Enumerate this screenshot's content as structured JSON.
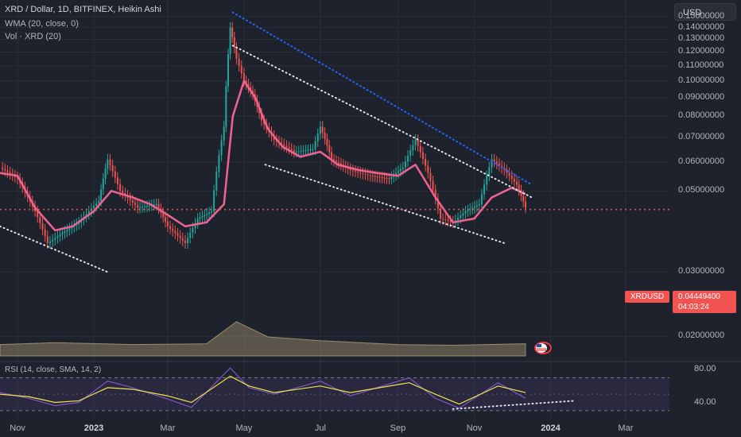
{
  "legend": {
    "title": "XRD / Dollar, 1D, BITFINEX, Heikin Ashi",
    "wma": "WMA (20, close, 0)",
    "vol": "Vol · XRD (20)",
    "rsi": "RSI (14, close, SMA, 14, 2)"
  },
  "currency_button": "USD",
  "last_price": {
    "symbol": "XRDUSD",
    "value": "0.04449400",
    "countdown": "04:03:24"
  },
  "colors": {
    "background": "#1e222d",
    "grid": "#2a2e39",
    "wma": "#f06292",
    "bull": "#26a69a",
    "bear": "#ef5350",
    "price_line": "#f05350",
    "trend_blue": "#2962ff",
    "trend_white": "#e0e3eb",
    "volume_ma": "#d7c189",
    "rsi_line": "#7e57c2",
    "rsi_ma": "#f0e54a"
  },
  "chart_data": [
    {
      "type": "line",
      "name": "price",
      "price_scale": "log",
      "ylim": [
        0.0175,
        0.16
      ],
      "y_ticks": [
        "0.15000000",
        "0.14000000",
        "0.13000000",
        "0.12000000",
        "0.11000000",
        "0.10000000",
        "0.09000000",
        "0.08000000",
        "0.07000000",
        "0.06000000",
        "0.05000000",
        "0.03000000",
        "0.02000000"
      ],
      "y_tick_values": [
        0.15,
        0.14,
        0.13,
        0.12,
        0.11,
        0.1,
        0.09,
        0.08,
        0.07,
        0.06,
        0.05,
        0.03,
        0.02
      ],
      "x_ticks": [
        "Nov",
        "2023",
        "Mar",
        "May",
        "Jul",
        "Sep",
        "Nov",
        "2024",
        "Mar"
      ],
      "x_tick_dates": [
        "2022-11-01",
        "2023-01-01",
        "2023-03-01",
        "2023-05-01",
        "2023-07-01",
        "2023-09-01",
        "2023-11-01",
        "2024-01-01",
        "2024-03-01"
      ],
      "x_range": [
        "2022-10-18",
        "2024-04-05"
      ],
      "series": [
        {
          "kind": "heikin_ashi_close",
          "x": [
            "2022-10-18",
            "2022-11-01",
            "2022-11-15",
            "2022-11-25",
            "2022-12-05",
            "2022-12-20",
            "2023-01-05",
            "2023-01-12",
            "2023-01-22",
            "2023-02-05",
            "2023-02-20",
            "2023-03-01",
            "2023-03-15",
            "2023-03-25",
            "2023-04-05",
            "2023-04-15",
            "2023-04-20",
            "2023-04-25",
            "2023-05-01",
            "2023-05-08",
            "2023-05-15",
            "2023-05-25",
            "2023-06-10",
            "2023-06-25",
            "2023-07-01",
            "2023-07-10",
            "2023-07-25",
            "2023-08-10",
            "2023-08-25",
            "2023-09-05",
            "2023-09-15",
            "2023-09-25",
            "2023-10-05",
            "2023-10-15",
            "2023-10-25",
            "2023-11-05",
            "2023-11-15",
            "2023-11-25",
            "2023-12-05",
            "2023-12-12"
          ],
          "y": [
            0.058,
            0.054,
            0.044,
            0.036,
            0.038,
            0.041,
            0.047,
            0.061,
            0.05,
            0.045,
            0.046,
            0.04,
            0.036,
            0.042,
            0.044,
            0.075,
            0.14,
            0.115,
            0.1,
            0.092,
            0.078,
            0.069,
            0.064,
            0.065,
            0.075,
            0.061,
            0.057,
            0.055,
            0.054,
            0.058,
            0.069,
            0.056,
            0.042,
            0.041,
            0.044,
            0.046,
            0.061,
            0.057,
            0.052,
            0.045
          ]
        },
        {
          "kind": "wma_20",
          "x": [
            "2022-10-18",
            "2022-11-01",
            "2022-11-15",
            "2022-12-01",
            "2022-12-15",
            "2023-01-01",
            "2023-01-15",
            "2023-02-01",
            "2023-02-15",
            "2023-03-01",
            "2023-03-15",
            "2023-04-01",
            "2023-04-15",
            "2023-04-22",
            "2023-05-01",
            "2023-05-10",
            "2023-05-20",
            "2023-06-01",
            "2023-06-15",
            "2023-07-01",
            "2023-07-15",
            "2023-08-01",
            "2023-08-15",
            "2023-09-01",
            "2023-09-15",
            "2023-10-01",
            "2023-10-15",
            "2023-11-01",
            "2023-11-15",
            "2023-12-01",
            "2023-12-12"
          ],
          "y": [
            0.056,
            0.055,
            0.045,
            0.039,
            0.04,
            0.044,
            0.05,
            0.048,
            0.046,
            0.043,
            0.04,
            0.041,
            0.046,
            0.08,
            0.1,
            0.09,
            0.074,
            0.066,
            0.062,
            0.064,
            0.059,
            0.057,
            0.056,
            0.055,
            0.059,
            0.048,
            0.041,
            0.042,
            0.048,
            0.051,
            0.049
          ]
        }
      ],
      "trendlines": [
        {
          "color": "blue",
          "from": [
            "2023-04-22",
            0.154
          ],
          "to": [
            "2023-12-17",
            0.052
          ]
        },
        {
          "color": "white",
          "from": [
            "2023-04-22",
            0.125
          ],
          "to": [
            "2023-12-17",
            0.048
          ]
        },
        {
          "color": "white",
          "from": [
            "2023-05-18",
            0.059
          ],
          "to": [
            "2023-11-25",
            0.036
          ]
        },
        {
          "color": "white",
          "from": [
            "2022-10-18",
            0.04
          ],
          "to": [
            "2023-01-12",
            0.03
          ]
        }
      ],
      "last_price_line": 0.044494
    },
    {
      "type": "area",
      "name": "volume_ma",
      "x": [
        "2022-10-18",
        "2022-12-01",
        "2023-02-01",
        "2023-04-01",
        "2023-04-25",
        "2023-05-20",
        "2023-07-01",
        "2023-09-01",
        "2023-10-15",
        "2023-12-12"
      ],
      "values": [
        0.3,
        0.35,
        0.3,
        0.32,
        0.9,
        0.5,
        0.4,
        0.3,
        0.28,
        0.32
      ]
    },
    {
      "type": "line",
      "name": "rsi",
      "ylim": [
        25,
        85
      ],
      "y_ticks": [
        "80.00",
        "40.00"
      ],
      "y_tick_values": [
        80,
        40
      ],
      "bands": [
        70,
        30
      ],
      "x": [
        "2022-10-18",
        "2022-11-10",
        "2022-12-01",
        "2022-12-20",
        "2023-01-12",
        "2023-02-01",
        "2023-03-01",
        "2023-03-20",
        "2023-04-20",
        "2023-05-05",
        "2023-05-25",
        "2023-07-01",
        "2023-07-25",
        "2023-09-10",
        "2023-10-01",
        "2023-10-20",
        "2023-11-20",
        "2023-12-12"
      ],
      "values": [
        52,
        45,
        36,
        40,
        66,
        58,
        44,
        34,
        82,
        58,
        50,
        66,
        48,
        70,
        45,
        33,
        64,
        45
      ],
      "ma_values": [
        50,
        47,
        40,
        42,
        58,
        56,
        48,
        40,
        72,
        60,
        52,
        60,
        52,
        64,
        50,
        38,
        60,
        52
      ],
      "trendline": {
        "from": [
          "2023-10-15",
          32
        ],
        "to": [
          "2024-01-20",
          42
        ]
      }
    }
  ]
}
